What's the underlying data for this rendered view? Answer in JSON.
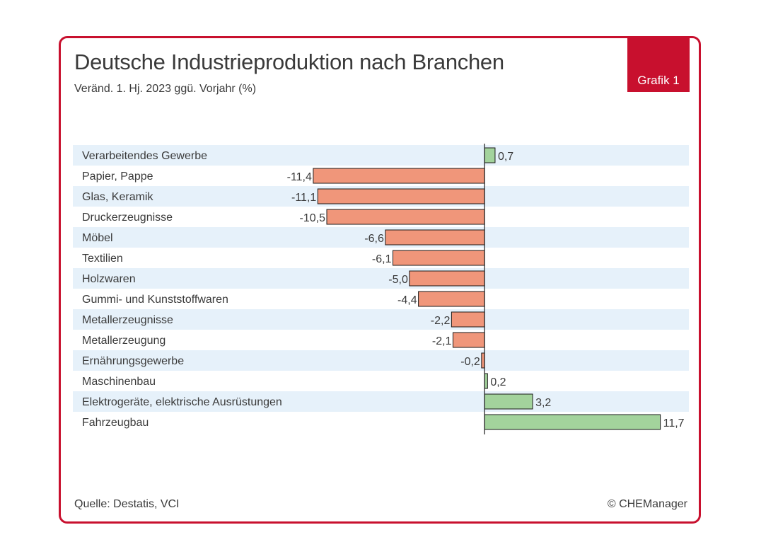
{
  "header": {
    "title": "Deutsche Industrieproduktion nach Branchen",
    "subtitle": "Veränd. 1. Hj. 2023 ggü. Vorjahr (%)",
    "badge": "Grafik 1"
  },
  "footer": {
    "source": "Quelle: Destatis, VCI",
    "copyright": "© CHEManager"
  },
  "colors": {
    "frame": "#c8102e",
    "negative_bar": "#f0967a",
    "positive_bar": "#a3d39c",
    "stripe": "#e6f1fa"
  },
  "chart_data": {
    "type": "bar",
    "orientation": "horizontal",
    "title": "Deutsche Industrieproduktion nach Branchen",
    "subtitle": "Veränd. 1. Hj. 2023 ggü. Vorjahr (%)",
    "categories": [
      "Verarbeitendes Gewerbe",
      "Papier, Pappe",
      "Glas, Keramik",
      "Druckerzeugnisse",
      "Möbel",
      "Textilien",
      "Holzwaren",
      "Gummi- und Kunststoffwaren",
      "Metallerzeugnisse",
      "Metallerzeugung",
      "Ernährungsgewerbe",
      "Maschinenbau",
      "Elektrogeräte, elektrische Ausrüstungen",
      "Fahrzeugbau"
    ],
    "values": [
      0.7,
      -11.4,
      -11.1,
      -10.5,
      -6.6,
      -6.1,
      -5.0,
      -4.4,
      -2.2,
      -2.1,
      -0.2,
      0.2,
      3.2,
      11.7
    ],
    "value_labels": [
      "0,7",
      "-11,4",
      "-11,1",
      "-10,5",
      "-6,6",
      "-6,1",
      "-5,0",
      "-4,4",
      "-2,2",
      "-2,1",
      "-0,2",
      "0,2",
      "3,2",
      "11,7"
    ],
    "xlim": [
      -27.4,
      13.6
    ],
    "xlabel": "",
    "ylabel": "",
    "grid": false,
    "legend": "none"
  }
}
